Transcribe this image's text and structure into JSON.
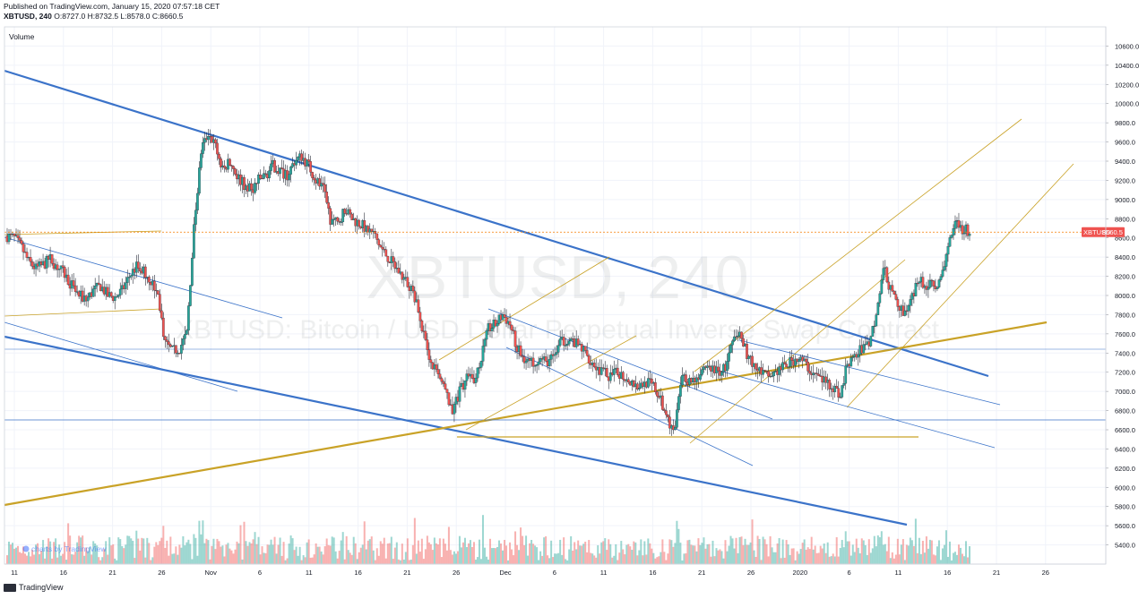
{
  "header": {
    "published": "Published on TradingView.com, January 15, 2020 07:57:18 CET",
    "symbol_line": "XBTUSD, 240",
    "ohlc": "O:8727.0 H:8732.5 L:8578.0 C:8660.5"
  },
  "footer": {
    "brand": "TradingView"
  },
  "chart_data": {
    "type": "candlestick",
    "symbol": "XBTUSD",
    "interval": "240",
    "watermark_line1": "XBTUSD, 240",
    "watermark_line2": "XBTUSD: Bitcoin / USD Dollar Perpetual Inverse Swap Contract",
    "volume_label": "Volume",
    "charts_by": "charts by TradingView",
    "ylim": [
      5200,
      10800
    ],
    "y_ticks": [
      "10600.0",
      "10400.0",
      "10200.0",
      "10000.0",
      "9800.0",
      "9600.0",
      "9400.0",
      "9200.0",
      "9000.0",
      "8800.0",
      "8600.0",
      "8400.0",
      "8200.0",
      "8000.0",
      "7800.0",
      "7600.0",
      "7400.0",
      "7200.0",
      "7000.0",
      "6800.0",
      "6600.0",
      "6400.0",
      "6200.0",
      "6000.0",
      "5800.0",
      "5600.0",
      "5400.0"
    ],
    "x_ticks": [
      "11",
      "16",
      "21",
      "26",
      "Nov",
      "6",
      "11",
      "16",
      "21",
      "26",
      "Dec",
      "6",
      "11",
      "16",
      "21",
      "26",
      "2020",
      "6",
      "11",
      "16",
      "21",
      "26"
    ],
    "last_price_label": "XBTUSD",
    "last_price": "8660.5",
    "colors": {
      "up": "#26a69a",
      "down": "#ef5350",
      "trend_blue": "#3b73c9",
      "trend_gold": "#c9a227",
      "price_line": "#f57c00"
    },
    "price_path": [
      [
        0,
        8620
      ],
      [
        2,
        8600
      ],
      [
        4,
        8500
      ],
      [
        6,
        8350
      ],
      [
        8,
        8280
      ],
      [
        10,
        8320
      ],
      [
        12,
        8380
      ],
      [
        14,
        8300
      ],
      [
        16,
        8220
      ],
      [
        18,
        8100
      ],
      [
        20,
        8000
      ],
      [
        22,
        7950
      ],
      [
        24,
        8050
      ],
      [
        26,
        8100
      ],
      [
        28,
        8000
      ],
      [
        30,
        7980
      ],
      [
        32,
        8050
      ],
      [
        34,
        8200
      ],
      [
        36,
        8300
      ],
      [
        38,
        8260
      ],
      [
        40,
        8150
      ],
      [
        42,
        8000
      ],
      [
        44,
        7500
      ],
      [
        46,
        7420
      ],
      [
        48,
        7450
      ],
      [
        50,
        7600
      ],
      [
        52,
        8700
      ],
      [
        54,
        9500
      ],
      [
        56,
        9700
      ],
      [
        58,
        9550
      ],
      [
        60,
        9300
      ],
      [
        62,
        9400
      ],
      [
        64,
        9250
      ],
      [
        66,
        9150
      ],
      [
        68,
        9100
      ],
      [
        70,
        9200
      ],
      [
        72,
        9250
      ],
      [
        74,
        9350
      ],
      [
        76,
        9300
      ],
      [
        78,
        9250
      ],
      [
        80,
        9400
      ],
      [
        82,
        9450
      ],
      [
        84,
        9350
      ],
      [
        86,
        9200
      ],
      [
        88,
        9100
      ],
      [
        90,
        8800
      ],
      [
        92,
        8750
      ],
      [
        94,
        8900
      ],
      [
        96,
        8800
      ],
      [
        98,
        8750
      ],
      [
        100,
        8700
      ],
      [
        102,
        8650
      ],
      [
        104,
        8500
      ],
      [
        106,
        8400
      ],
      [
        108,
        8300
      ],
      [
        110,
        8200
      ],
      [
        112,
        8100
      ],
      [
        114,
        7900
      ],
      [
        116,
        7600
      ],
      [
        118,
        7300
      ],
      [
        120,
        7150
      ],
      [
        122,
        7000
      ],
      [
        124,
        6800
      ],
      [
        126,
        7000
      ],
      [
        128,
        7150
      ],
      [
        130,
        7100
      ],
      [
        132,
        7350
      ],
      [
        134,
        7650
      ],
      [
        136,
        7700
      ],
      [
        138,
        7800
      ],
      [
        140,
        7700
      ],
      [
        142,
        7450
      ],
      [
        144,
        7350
      ],
      [
        146,
        7300
      ],
      [
        148,
        7350
      ],
      [
        150,
        7300
      ],
      [
        152,
        7350
      ],
      [
        154,
        7500
      ],
      [
        156,
        7550
      ],
      [
        158,
        7500
      ],
      [
        160,
        7450
      ],
      [
        162,
        7350
      ],
      [
        164,
        7250
      ],
      [
        166,
        7200
      ],
      [
        168,
        7150
      ],
      [
        170,
        7200
      ],
      [
        172,
        7150
      ],
      [
        174,
        7100
      ],
      [
        176,
        7050
      ],
      [
        178,
        7100
      ],
      [
        180,
        7050
      ],
      [
        182,
        6900
      ],
      [
        184,
        6700
      ],
      [
        186,
        6600
      ],
      [
        188,
        7200
      ],
      [
        190,
        7100
      ],
      [
        192,
        7150
      ],
      [
        194,
        7200
      ],
      [
        196,
        7250
      ],
      [
        198,
        7200
      ],
      [
        200,
        7250
      ],
      [
        202,
        7500
      ],
      [
        204,
        7600
      ],
      [
        206,
        7400
      ],
      [
        208,
        7250
      ],
      [
        210,
        7200
      ],
      [
        212,
        7150
      ],
      [
        214,
        7200
      ],
      [
        216,
        7250
      ],
      [
        218,
        7300
      ],
      [
        220,
        7350
      ],
      [
        222,
        7300
      ],
      [
        224,
        7200
      ],
      [
        226,
        7150
      ],
      [
        228,
        7100
      ],
      [
        230,
        7050
      ],
      [
        232,
        6950
      ],
      [
        234,
        7300
      ],
      [
        236,
        7350
      ],
      [
        238,
        7450
      ],
      [
        240,
        7500
      ],
      [
        242,
        7800
      ],
      [
        244,
        8300
      ],
      [
        246,
        8050
      ],
      [
        248,
        7900
      ],
      [
        250,
        7800
      ],
      [
        252,
        8000
      ],
      [
        254,
        8150
      ],
      [
        256,
        8100
      ],
      [
        258,
        8100
      ],
      [
        260,
        8150
      ],
      [
        262,
        8500
      ],
      [
        264,
        8800
      ],
      [
        266,
        8700
      ],
      [
        268,
        8660
      ]
    ]
  }
}
